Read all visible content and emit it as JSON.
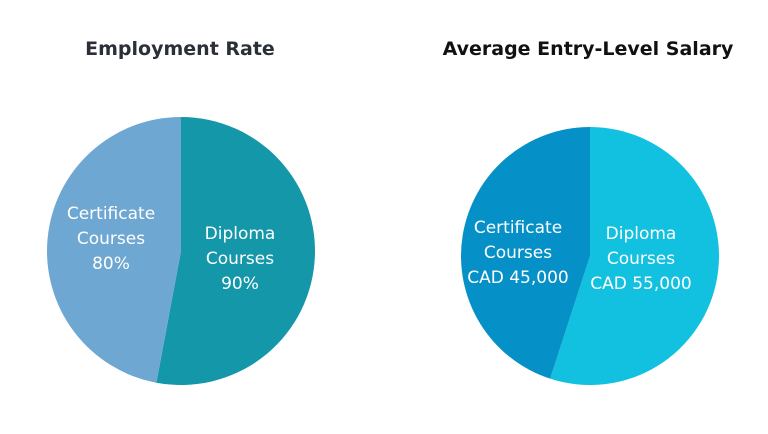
{
  "chart_data": [
    {
      "type": "pie",
      "title": "Employment Rate",
      "categories": [
        "Diploma Courses",
        "Certificate Courses"
      ],
      "values": [
        90,
        80
      ],
      "unit": "%",
      "colors": [
        "#1497a8",
        "#6ea7d1"
      ],
      "slice_labels": [
        [
          "Diploma",
          "Courses",
          "90%"
        ],
        [
          "Certificate",
          "Courses",
          "80%"
        ]
      ]
    },
    {
      "type": "pie",
      "title": "Average Entry-Level Salary",
      "categories": [
        "Diploma Courses",
        "Certificate Courses"
      ],
      "values": [
        55000,
        45000
      ],
      "unit": "CAD",
      "colors": [
        "#12c0e0",
        "#0591c7"
      ],
      "slice_labels": [
        [
          "Diploma",
          "Courses",
          "CAD 55,000"
        ],
        [
          "Certificate",
          "Courses",
          "CAD 45,000"
        ]
      ]
    }
  ]
}
